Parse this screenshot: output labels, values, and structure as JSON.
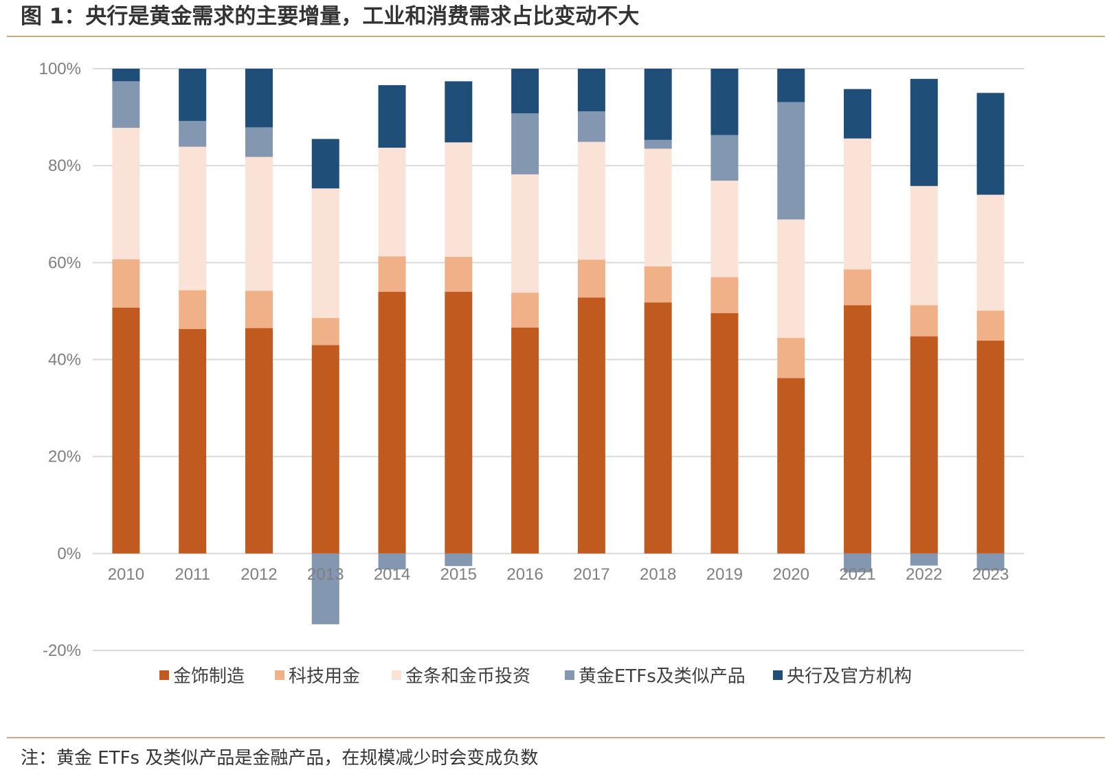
{
  "page": {
    "title": "图 1：央行是黄金需求的主要增量，工业和消费需求占比变动不大",
    "note": "注：黄金 ETFs 及类似产品是金融产品，在规模减少时会变成负数"
  },
  "chart_data": {
    "type": "bar",
    "stacked": true,
    "title": "图 1：央行是黄金需求的主要增量，工业和消费需求占比变动不大",
    "xlabel": "",
    "ylabel": "",
    "ylim": [
      -20,
      100
    ],
    "yticks": [
      -20,
      0,
      20,
      40,
      60,
      80,
      100
    ],
    "ytick_labels": [
      "-20%",
      "0%",
      "20%",
      "40%",
      "60%",
      "80%",
      "100%"
    ],
    "grid": true,
    "legend_position": "bottom",
    "categories": [
      "2010",
      "2011",
      "2012",
      "2013",
      "2014",
      "2015",
      "2016",
      "2017",
      "2018",
      "2019",
      "2020",
      "2021",
      "2022",
      "2023"
    ],
    "series": [
      {
        "name": "金饰制造",
        "color": "#c05a1f",
        "values": [
          50.7,
          46.3,
          46.5,
          43.0,
          54.0,
          54.0,
          46.6,
          52.8,
          51.8,
          49.6,
          36.2,
          51.2,
          44.8,
          43.9
        ]
      },
      {
        "name": "科技用金",
        "color": "#f0b088",
        "values": [
          10.0,
          8.0,
          7.7,
          5.6,
          7.3,
          7.2,
          7.2,
          7.8,
          7.4,
          7.4,
          8.3,
          7.4,
          6.4,
          6.2
        ]
      },
      {
        "name": "金条和金币投资",
        "color": "#fae3d6",
        "values": [
          27.1,
          29.6,
          27.6,
          26.7,
          22.4,
          23.6,
          24.4,
          24.3,
          24.3,
          19.9,
          24.4,
          27.0,
          24.6,
          23.9
        ]
      },
      {
        "name": "黄金ETFs及类似产品",
        "color": "#8497b0",
        "values": [
          9.6,
          5.3,
          6.1,
          -14.6,
          -3.3,
          -2.6,
          12.6,
          6.3,
          1.8,
          9.4,
          24.2,
          -3.9,
          -2.5,
          -3.5
        ]
      },
      {
        "name": "央行及官方机构",
        "color": "#1f4e79",
        "values": [
          2.6,
          10.8,
          12.1,
          10.2,
          12.9,
          12.6,
          9.2,
          8.8,
          14.7,
          13.7,
          6.9,
          10.2,
          22.1,
          21.0
        ]
      }
    ]
  }
}
